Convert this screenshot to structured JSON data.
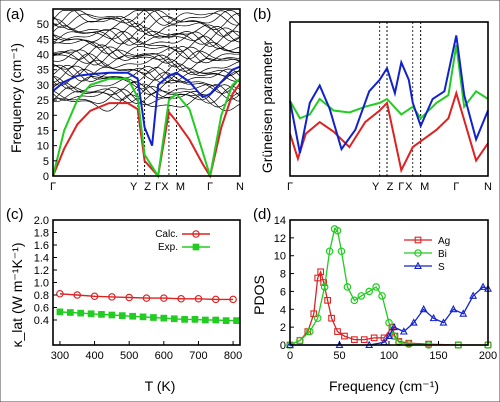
{
  "colors": {
    "red": "#dd2222",
    "green": "#22cc22",
    "blue": "#1122cc",
    "black": "#000000"
  },
  "chart_data": [
    {
      "panel": "(a)",
      "type": "line",
      "ylabel": "Frequency (cm⁻¹)",
      "ylim": [
        0,
        55
      ],
      "yticks": [
        0,
        5,
        10,
        15,
        20,
        25,
        30,
        35,
        40,
        45,
        50
      ],
      "xticks": [
        "Γ",
        "Y",
        "Z",
        "Γ",
        "X",
        "M",
        "Γ",
        "N"
      ],
      "high_symmetry_positions": [
        0,
        0.453,
        0.49,
        0.562,
        0.62,
        0.66,
        0.84,
        1.0
      ],
      "series": [
        {
          "color": "red",
          "points": [
            [
              0,
              0
            ],
            [
              0.06,
              9
            ],
            [
              0.13,
              17
            ],
            [
              0.2,
              21.5
            ],
            [
              0.3,
              24
            ],
            [
              0.4,
              24
            ],
            [
              0.453,
              22
            ],
            [
              0.49,
              5
            ],
            [
              0.562,
              0
            ],
            [
              0.62,
              21
            ],
            [
              0.66,
              18
            ],
            [
              0.73,
              12
            ],
            [
              0.8,
              4
            ],
            [
              0.84,
              0
            ],
            [
              0.9,
              16
            ],
            [
              0.96,
              27
            ],
            [
              1.0,
              30.5
            ]
          ]
        },
        {
          "color": "green",
          "points": [
            [
              0,
              0
            ],
            [
              0.06,
              15
            ],
            [
              0.13,
              25
            ],
            [
              0.2,
              30
            ],
            [
              0.3,
              32
            ],
            [
              0.4,
              32
            ],
            [
              0.453,
              26
            ],
            [
              0.49,
              7
            ],
            [
              0.562,
              0
            ],
            [
              0.62,
              25
            ],
            [
              0.66,
              27
            ],
            [
              0.73,
              22
            ],
            [
              0.8,
              8
            ],
            [
              0.84,
              0
            ],
            [
              0.9,
              20
            ],
            [
              0.96,
              30
            ],
            [
              1.0,
              32
            ]
          ]
        },
        {
          "color": "blue",
          "points": [
            [
              0,
              28
            ],
            [
              0.06,
              31
            ],
            [
              0.13,
              33
            ],
            [
              0.2,
              33.5
            ],
            [
              0.3,
              34
            ],
            [
              0.4,
              34
            ],
            [
              0.453,
              32
            ],
            [
              0.49,
              16
            ],
            [
              0.53,
              10
            ],
            [
              0.562,
              30
            ],
            [
              0.62,
              33
            ],
            [
              0.66,
              34
            ],
            [
              0.73,
              31
            ],
            [
              0.8,
              26
            ],
            [
              0.84,
              27
            ],
            [
              0.9,
              31
            ],
            [
              0.96,
              35
            ],
            [
              1.0,
              36
            ]
          ]
        }
      ]
    },
    {
      "panel": "(b)",
      "type": "line",
      "ylabel": "Grüneisen parameter",
      "ylim": [
        0,
        8
      ],
      "xticks": [
        "Γ",
        "Y",
        "Z",
        "Γ",
        "X",
        "M",
        "Γ",
        "N"
      ],
      "high_symmetry_positions": [
        0,
        0.453,
        0.49,
        0.562,
        0.62,
        0.66,
        0.84,
        1.0
      ],
      "series": [
        {
          "color": "red",
          "points": [
            [
              0,
              2.2
            ],
            [
              0.04,
              0.9
            ],
            [
              0.08,
              2.2
            ],
            [
              0.15,
              2.8
            ],
            [
              0.22,
              2.3
            ],
            [
              0.3,
              1.5
            ],
            [
              0.38,
              2.8
            ],
            [
              0.453,
              3.4
            ],
            [
              0.49,
              3.8
            ],
            [
              0.562,
              0.3
            ],
            [
              0.62,
              1.5
            ],
            [
              0.66,
              1.8
            ],
            [
              0.74,
              2.4
            ],
            [
              0.8,
              3.0
            ],
            [
              0.84,
              4.3
            ],
            [
              0.9,
              2.2
            ],
            [
              0.94,
              0.8
            ],
            [
              1.0,
              1.7
            ]
          ]
        },
        {
          "color": "green",
          "points": [
            [
              0,
              3.9
            ],
            [
              0.05,
              3.0
            ],
            [
              0.1,
              3.2
            ],
            [
              0.15,
              4.0
            ],
            [
              0.22,
              3.4
            ],
            [
              0.3,
              3.3
            ],
            [
              0.38,
              3.6
            ],
            [
              0.453,
              3.8
            ],
            [
              0.49,
              4.0
            ],
            [
              0.562,
              3.2
            ],
            [
              0.62,
              3.6
            ],
            [
              0.66,
              3.0
            ],
            [
              0.74,
              3.8
            ],
            [
              0.8,
              4.2
            ],
            [
              0.84,
              6.8
            ],
            [
              0.88,
              3.6
            ],
            [
              0.94,
              4.4
            ],
            [
              1.0,
              4.0
            ]
          ]
        },
        {
          "color": "blue",
          "points": [
            [
              0,
              3.9
            ],
            [
              0.05,
              1.2
            ],
            [
              0.1,
              3.8
            ],
            [
              0.15,
              4.7
            ],
            [
              0.2,
              3.5
            ],
            [
              0.26,
              1.4
            ],
            [
              0.33,
              2.4
            ],
            [
              0.4,
              4.4
            ],
            [
              0.453,
              5.0
            ],
            [
              0.49,
              5.6
            ],
            [
              0.53,
              4.3
            ],
            [
              0.562,
              5.9
            ],
            [
              0.6,
              5.0
            ],
            [
              0.62,
              3.8
            ],
            [
              0.66,
              2.6
            ],
            [
              0.72,
              4.0
            ],
            [
              0.78,
              4.4
            ],
            [
              0.84,
              7.3
            ],
            [
              0.88,
              4.2
            ],
            [
              0.94,
              1.9
            ],
            [
              1.0,
              3.4
            ]
          ]
        }
      ]
    },
    {
      "panel": "(c)",
      "type": "line",
      "xlabel": "T (K)",
      "ylabel": "κ_lat (W m⁻¹K⁻¹)",
      "xlim": [
        280,
        820
      ],
      "ylim": [
        0.0,
        2.0
      ],
      "xticks": [
        300,
        400,
        500,
        600,
        700,
        800
      ],
      "yticks": [
        0.4,
        0.6,
        0.8,
        1.0,
        1.2,
        1.4,
        1.6,
        1.8,
        2.0
      ],
      "legend": [
        "Calc.",
        "Exp."
      ],
      "legend_position": "top-right",
      "series": [
        {
          "name": "Calc.",
          "color": "red",
          "marker": "circle",
          "x": [
            300,
            350,
            400,
            450,
            500,
            550,
            600,
            650,
            700,
            750,
            800
          ],
          "y": [
            0.82,
            0.8,
            0.78,
            0.77,
            0.76,
            0.75,
            0.75,
            0.74,
            0.74,
            0.73,
            0.73
          ]
        },
        {
          "name": "Exp.",
          "color": "green",
          "marker": "square",
          "x": [
            300,
            330,
            360,
            390,
            420,
            450,
            480,
            510,
            540,
            570,
            600,
            630,
            660,
            690,
            720,
            750,
            780,
            810
          ],
          "y": [
            0.53,
            0.52,
            0.51,
            0.5,
            0.49,
            0.48,
            0.47,
            0.46,
            0.45,
            0.44,
            0.43,
            0.42,
            0.41,
            0.41,
            0.4,
            0.4,
            0.39,
            0.39
          ]
        }
      ]
    },
    {
      "panel": "(d)",
      "type": "line",
      "xlabel": "Frequency (cm⁻¹)",
      "ylabel": "PDOS",
      "xlim": [
        0,
        200
      ],
      "ylim": [
        0,
        14
      ],
      "xticks": [
        0,
        50,
        100,
        150,
        200
      ],
      "yticks": [
        0,
        2,
        4,
        6,
        8,
        10,
        12,
        14
      ],
      "legend": [
        "Ag",
        "Bi",
        "S"
      ],
      "legend_position": "top-right",
      "series": [
        {
          "name": "Ag",
          "color": "red",
          "marker": "square",
          "x": [
            0,
            10,
            18,
            24,
            28,
            31,
            34,
            38,
            42,
            48,
            55,
            65,
            75,
            85,
            95,
            103,
            106,
            110,
            120,
            140,
            170,
            200
          ],
          "y": [
            0,
            0.5,
            1.5,
            3.5,
            7.5,
            8.2,
            7.0,
            5.0,
            3.0,
            1.5,
            1.0,
            0.6,
            0.6,
            0.8,
            0.8,
            2.0,
            1.0,
            0.4,
            0.2,
            0.1,
            0,
            0
          ]
        },
        {
          "name": "Bi",
          "color": "green",
          "marker": "circle",
          "x": [
            0,
            10,
            20,
            28,
            35,
            40,
            45,
            48,
            52,
            58,
            65,
            72,
            80,
            87,
            93,
            100,
            105,
            110,
            120,
            140,
            170,
            200
          ],
          "y": [
            0,
            0.5,
            1.5,
            3.0,
            6.5,
            10.5,
            13.0,
            12.8,
            10.5,
            6.5,
            5.0,
            5.5,
            6.0,
            6.5,
            5.5,
            2.5,
            1.0,
            0.3,
            0.1,
            0,
            0,
            0
          ]
        },
        {
          "name": "S",
          "color": "blue",
          "marker": "triangle",
          "x": [
            0,
            50,
            80,
            95,
            100,
            105,
            115,
            125,
            135,
            145,
            155,
            165,
            175,
            185,
            195,
            200
          ],
          "y": [
            0,
            0,
            0,
            0.3,
            1.0,
            2.0,
            1.5,
            2.5,
            4.0,
            3.0,
            2.5,
            4.0,
            3.5,
            5.5,
            6.5,
            6.3
          ]
        }
      ]
    }
  ]
}
